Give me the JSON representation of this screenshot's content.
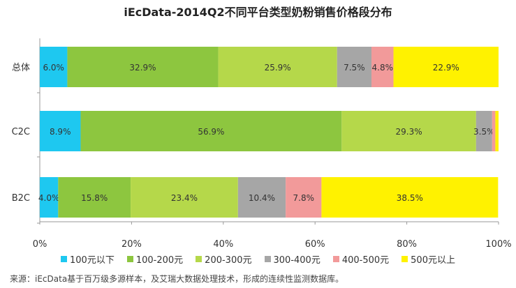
{
  "chart_data": {
    "type": "bar",
    "orientation": "horizontal",
    "stacked": true,
    "title": "iEcData-2014Q2不同平台类型奶粉销售价格段分布",
    "categories": [
      "总体",
      "C2C",
      "B2C"
    ],
    "series": [
      {
        "name": "100元以下",
        "color": "#1ec8f0",
        "values": [
          6.0,
          8.9,
          4.0
        ],
        "labels": [
          "6.0%",
          "8.9%",
          "4.0%"
        ]
      },
      {
        "name": "100-200元",
        "color": "#8dc63f",
        "values": [
          32.9,
          56.9,
          15.8
        ],
        "labels": [
          "32.9%",
          "56.9%",
          "15.8%"
        ]
      },
      {
        "name": "200-300元",
        "color": "#b5d84a",
        "values": [
          25.9,
          29.3,
          23.4
        ],
        "labels": [
          "25.9%",
          "29.3%",
          "23.4%"
        ]
      },
      {
        "name": "300-400元",
        "color": "#a6a6a6",
        "values": [
          7.5,
          3.5,
          10.4
        ],
        "labels": [
          "7.5%",
          "3.5%",
          "10.4%"
        ]
      },
      {
        "name": "400-500元",
        "color": "#f29a9a",
        "values": [
          4.8,
          0.7,
          7.8
        ],
        "labels": [
          "4.8%",
          "",
          "7.8%"
        ]
      },
      {
        "name": "500元以上",
        "color": "#fff200",
        "values": [
          22.9,
          0.7,
          38.5
        ],
        "labels": [
          "22.9%",
          "",
          "38.5%"
        ]
      }
    ],
    "xlim": [
      0,
      100
    ],
    "xticks": [
      "0%",
      "20%",
      "40%",
      "60%",
      "80%",
      "100%"
    ],
    "legend_position": "bottom",
    "grid": false
  },
  "source_note": "来源：iEcData基于百万级多源样本，及艾瑞大数据处理技术，形成的连续性监测数据库。"
}
